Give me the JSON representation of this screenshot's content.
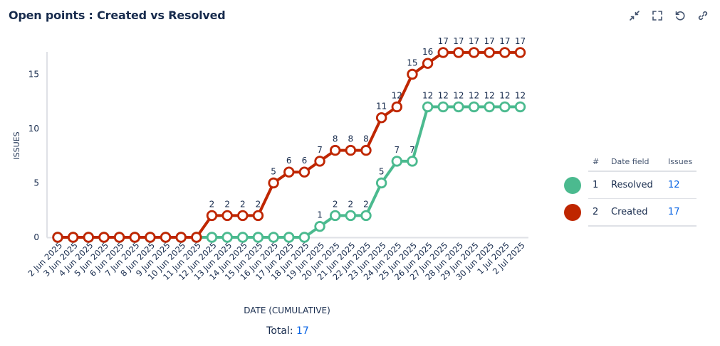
{
  "header": {
    "title": "Open points : Created vs Resolved",
    "actions": [
      {
        "name": "collapse-button",
        "icon": "minimize-icon"
      },
      {
        "name": "fullscreen-button",
        "icon": "fullscreen-icon"
      },
      {
        "name": "refresh-button",
        "icon": "refresh-icon"
      },
      {
        "name": "copy-link-button",
        "icon": "link-icon"
      }
    ]
  },
  "chart_data": {
    "type": "line",
    "xlabel": "DATE (CUMULATIVE)",
    "ylabel": "ISSUES",
    "ylim": [
      0,
      17
    ],
    "yticks": [
      0,
      5,
      10,
      15
    ],
    "categories": [
      "2 Jun 2025",
      "3 Jun 2025",
      "4 Jun 2025",
      "5 Jun 2025",
      "6 Jun 2025",
      "7 Jun 2025",
      "8 Jun 2025",
      "9 Jun 2025",
      "10 Jun 2025",
      "11 Jun 2025",
      "12 Jun 2025",
      "13 Jun 2025",
      "14 Jun 2025",
      "15 Jun 2025",
      "16 Jun 2025",
      "17 Jun 2025",
      "18 Jun 2025",
      "19 Jun 2025",
      "20 Jun 2025",
      "21 Jun 2025",
      "22 Jun 2025",
      "23 Jun 2025",
      "24 Jun 2025",
      "25 Jun 2025",
      "26 Jun 2025",
      "27 Jun 2025",
      "28 Jun 2025",
      "29 Jun 2025",
      "30 Jun 2025",
      "1 Jul 2025",
      "2 Jul 2025"
    ],
    "series": [
      {
        "name": "Created",
        "color": "#bf2600",
        "values": [
          0,
          0,
          0,
          0,
          0,
          0,
          0,
          0,
          0,
          0,
          2,
          2,
          2,
          2,
          5,
          6,
          6,
          7,
          8,
          8,
          8,
          11,
          12,
          15,
          16,
          17,
          17,
          17,
          17,
          17,
          17
        ]
      },
      {
        "name": "Resolved",
        "color": "#4bba8f",
        "values": [
          0,
          0,
          0,
          0,
          0,
          0,
          0,
          0,
          0,
          0,
          0,
          0,
          0,
          0,
          0,
          0,
          0,
          1,
          2,
          2,
          2,
          5,
          7,
          7,
          12,
          12,
          12,
          12,
          12,
          12,
          12
        ]
      }
    ],
    "grid": false
  },
  "legend": {
    "headers": {
      "num": "#",
      "field": "Date field",
      "issues": "Issues"
    },
    "rows": [
      {
        "num": "1",
        "field": "Resolved",
        "count": "12",
        "color": "#4bba8f"
      },
      {
        "num": "2",
        "field": "Created",
        "count": "17",
        "color": "#bf2600"
      }
    ]
  },
  "footer": {
    "label": "Total:",
    "value": "17"
  }
}
